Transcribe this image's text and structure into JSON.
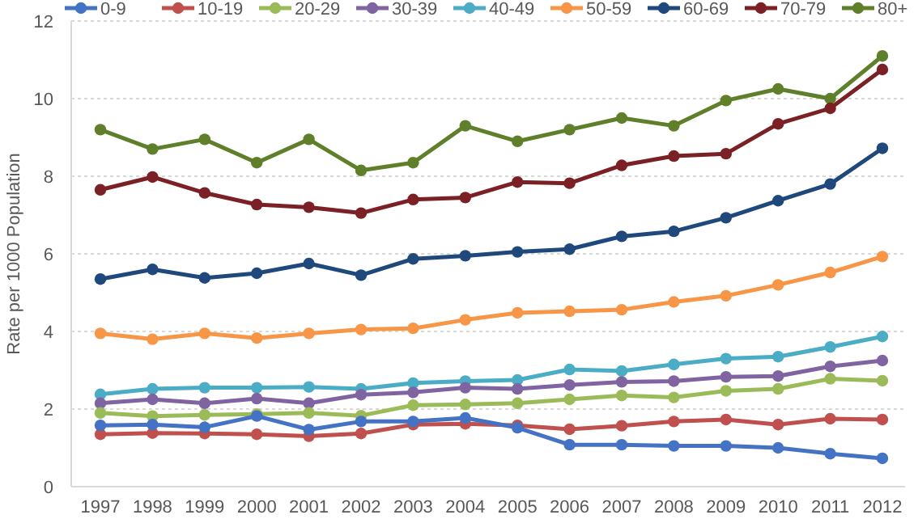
{
  "chart_data": {
    "type": "line",
    "ylabel": "Rate per 1000 Population",
    "categories": [
      "1997",
      "1998",
      "1999",
      "2000",
      "2001",
      "2002",
      "2003",
      "2004",
      "2005",
      "2006",
      "2007",
      "2008",
      "2009",
      "2010",
      "2011",
      "2012"
    ],
    "ylim": [
      0,
      12
    ],
    "yticks": [
      0,
      2,
      4,
      6,
      8,
      10,
      12
    ],
    "grid": "y",
    "legend": "top",
    "marker": "circle",
    "line_style": "solid",
    "series": [
      {
        "name": "0-9",
        "color": "#4472c4",
        "values": [
          1.58,
          1.6,
          1.53,
          1.82,
          1.47,
          1.68,
          1.68,
          1.77,
          1.52,
          1.08,
          1.08,
          1.05,
          1.05,
          1.0,
          0.85,
          0.73
        ]
      },
      {
        "name": "10-19",
        "color": "#c0504d",
        "values": [
          1.35,
          1.38,
          1.37,
          1.35,
          1.3,
          1.37,
          1.6,
          1.62,
          1.58,
          1.48,
          1.57,
          1.68,
          1.73,
          1.6,
          1.75,
          1.73
        ]
      },
      {
        "name": "20-29",
        "color": "#9bbb59",
        "values": [
          1.9,
          1.82,
          1.85,
          1.87,
          1.9,
          1.83,
          2.1,
          2.12,
          2.15,
          2.25,
          2.35,
          2.3,
          2.47,
          2.52,
          2.78,
          2.73
        ]
      },
      {
        "name": "30-39",
        "color": "#8064a2",
        "values": [
          2.15,
          2.25,
          2.15,
          2.27,
          2.15,
          2.37,
          2.43,
          2.55,
          2.52,
          2.62,
          2.7,
          2.72,
          2.83,
          2.85,
          3.1,
          3.25
        ]
      },
      {
        "name": "40-49",
        "color": "#4bacc6",
        "values": [
          2.38,
          2.52,
          2.55,
          2.55,
          2.57,
          2.52,
          2.67,
          2.72,
          2.75,
          3.02,
          2.98,
          3.15,
          3.3,
          3.35,
          3.6,
          3.87
        ]
      },
      {
        "name": "50-59",
        "color": "#f79646",
        "values": [
          3.95,
          3.8,
          3.95,
          3.83,
          3.95,
          4.05,
          4.08,
          4.3,
          4.48,
          4.52,
          4.56,
          4.76,
          4.92,
          5.2,
          5.52,
          5.93
        ]
      },
      {
        "name": "60-69",
        "color": "#1f497d",
        "values": [
          5.35,
          5.6,
          5.38,
          5.5,
          5.75,
          5.45,
          5.87,
          5.95,
          6.05,
          6.12,
          6.45,
          6.58,
          6.93,
          7.37,
          7.8,
          8.72
        ]
      },
      {
        "name": "70-79",
        "color": "#7b2025",
        "values": [
          7.65,
          7.98,
          7.57,
          7.27,
          7.2,
          7.05,
          7.4,
          7.45,
          7.85,
          7.82,
          8.28,
          8.52,
          8.58,
          9.35,
          9.75,
          10.75
        ]
      },
      {
        "name": "80+",
        "color": "#5f7f2a",
        "values": [
          9.2,
          8.7,
          8.95,
          8.35,
          8.95,
          8.15,
          8.35,
          9.3,
          8.9,
          9.2,
          9.5,
          9.3,
          9.95,
          10.25,
          10.0,
          11.1
        ]
      }
    ]
  }
}
